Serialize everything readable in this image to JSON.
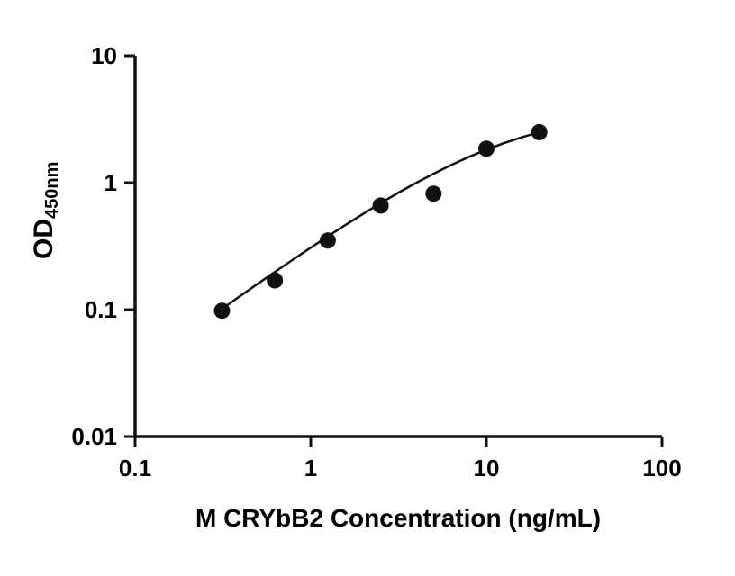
{
  "chart_data": {
    "type": "scatter",
    "title": "",
    "xlabel": "M CRYbB2 Concentration (ng/mL)",
    "ylabel": "OD450nm",
    "ylabel_main": "OD",
    "ylabel_sub": "450nm",
    "x_scale": "log",
    "y_scale": "log",
    "xlim": [
      0.1,
      100
    ],
    "ylim": [
      0.01,
      10
    ],
    "x_ticks": [
      0.1,
      1,
      10,
      100
    ],
    "x_tick_labels": [
      "0.1",
      "1",
      "10",
      "100"
    ],
    "y_ticks": [
      0.01,
      0.1,
      1,
      10
    ],
    "y_tick_labels": [
      "0.01",
      "0.1",
      "1",
      "10"
    ],
    "grid": false,
    "legend": "none",
    "points": {
      "x": [
        0.3125,
        0.625,
        1.25,
        2.5,
        5,
        10,
        20
      ],
      "y": [
        0.098,
        0.17,
        0.35,
        0.66,
        0.82,
        1.85,
        2.5
      ]
    },
    "fit_curve": {
      "x": [
        0.3125,
        0.4,
        0.5,
        0.625,
        0.8,
        1.0,
        1.25,
        1.6,
        2.0,
        2.5,
        3.2,
        4.0,
        5.0,
        6.3,
        8.0,
        10.0,
        12.5,
        16.0,
        20.0
      ],
      "y": [
        0.1015,
        0.129,
        0.16,
        0.198,
        0.25,
        0.3077,
        0.377,
        0.4706,
        0.5714,
        0.6897,
        0.842,
        1.0,
        1.176,
        1.377,
        1.6,
        1.818,
        2.041,
        2.286,
        2.5
      ]
    },
    "marker_color": "#111111",
    "line_color": "#111111",
    "axis_color": "#111111"
  }
}
